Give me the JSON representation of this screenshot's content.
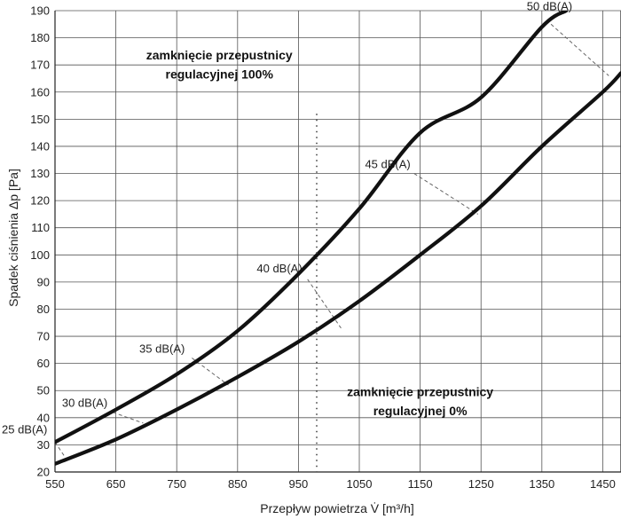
{
  "chart_data": {
    "type": "line",
    "xlabel": "Przepływ powietrza V̇ [m³/h]",
    "ylabel": "Spadek ciśnienia Δp [Pa]",
    "xlim": [
      550,
      1480
    ],
    "ylim": [
      20,
      190
    ],
    "xticks": [
      550,
      650,
      750,
      850,
      950,
      1050,
      1150,
      1250,
      1350,
      1450
    ],
    "yticks": [
      20,
      30,
      40,
      50,
      60,
      70,
      80,
      90,
      100,
      110,
      120,
      130,
      140,
      150,
      160,
      170,
      180,
      190
    ],
    "grid": true,
    "series": [
      {
        "name": "zamknięcie przepustnicy regulacyjnej 100%",
        "x": [
          550,
          650,
          750,
          850,
          950,
          1050,
          1150,
          1250,
          1350,
          1390
        ],
        "y": [
          31,
          43,
          56,
          72,
          93,
          117,
          145,
          158,
          184,
          190
        ]
      },
      {
        "name": "zamknięcie przepustnicy regulacyjnej 0%",
        "x": [
          550,
          650,
          750,
          850,
          950,
          1050,
          1150,
          1250,
          1350,
          1450,
          1480
        ],
        "y": [
          23,
          32,
          43,
          55,
          68,
          83,
          100,
          118,
          140,
          160,
          167
        ]
      }
    ],
    "noise_lines": [
      {
        "label": "25 dB(A)",
        "from": [
          550,
          31
        ],
        "to": [
          565,
          26
        ]
      },
      {
        "label": "30 dB(A)",
        "from": [
          645,
          42
        ],
        "to": [
          695,
          38
        ]
      },
      {
        "label": "35 dB(A)",
        "from": [
          775,
          62
        ],
        "to": [
          835,
          52
        ]
      },
      {
        "label": "40 dB(A)",
        "from": [
          965,
          91
        ],
        "to": [
          1020,
          73
        ]
      },
      {
        "label": "45 dB(A)",
        "from": [
          1140,
          130
        ],
        "to": [
          1245,
          115
        ]
      },
      {
        "label": "50 dB(A)",
        "from": [
          1365,
          185
        ],
        "to": [
          1460,
          166
        ]
      }
    ],
    "annotations": [
      {
        "text": "zamknięcie przepustnicy",
        "x": 820,
        "y": 172
      },
      {
        "text": "regulacyjnej 100%",
        "x": 820,
        "y": 165
      },
      {
        "text": "zamknięcie przepustnicy",
        "x": 1150,
        "y": 48
      },
      {
        "text": "regulacyjnej 0%",
        "x": 1150,
        "y": 41
      }
    ]
  },
  "colors": {
    "curve": "#111111",
    "grid": "#555555",
    "noise": "#666666",
    "background": "#ffffff"
  }
}
